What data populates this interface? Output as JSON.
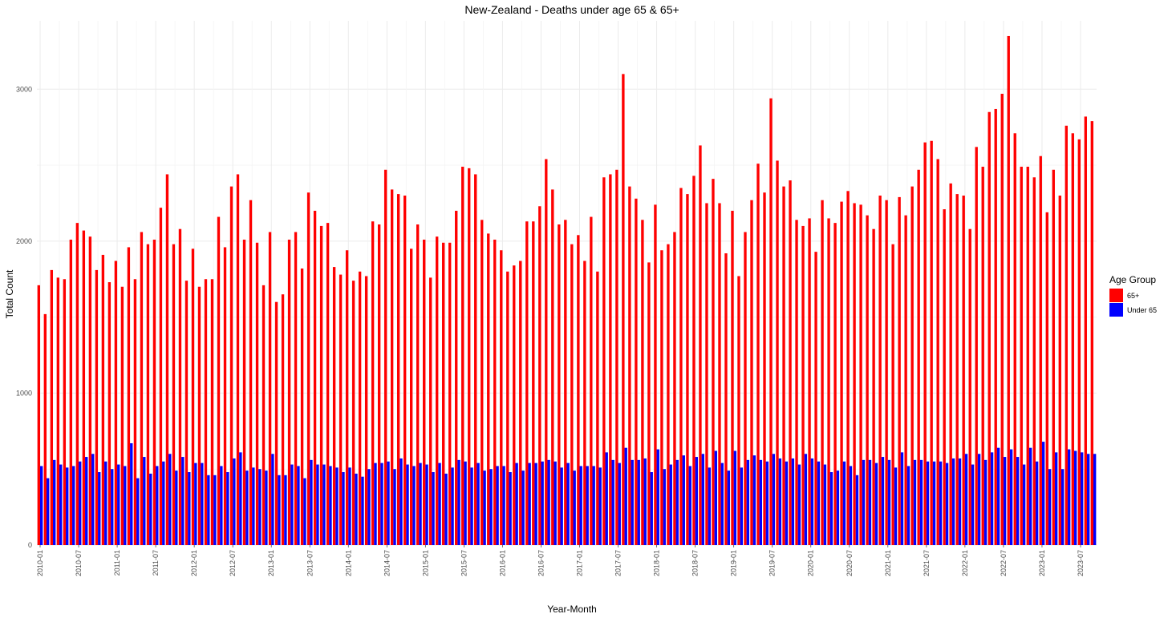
{
  "chart_data": {
    "type": "bar",
    "title": "New-Zealand - Deaths under age 65 & 65+",
    "xlabel": "Year-Month",
    "ylabel": "Total Count",
    "ylim": [
      0,
      3450
    ],
    "y_ticks": [
      0,
      1000,
      2000,
      3000
    ],
    "x_start": "2010-01",
    "x_tick_labels": [
      "2010-01",
      "2010-07",
      "2011-01",
      "2011-07",
      "2012-01",
      "2012-07",
      "2013-01",
      "2013-07",
      "2014-01",
      "2014-07",
      "2015-01",
      "2015-07",
      "2016-01",
      "2016-07",
      "2017-01",
      "2017-07",
      "2018-01",
      "2018-07",
      "2019-01",
      "2019-07",
      "2020-01",
      "2020-07",
      "2021-01",
      "2021-07",
      "2022-01",
      "2022-07",
      "2023-01",
      "2023-07"
    ],
    "grid": true,
    "legend": {
      "title": "Age Group",
      "position": "right",
      "entries": [
        {
          "label": "65+",
          "color": "#ff0000"
        },
        {
          "label": "Under 65",
          "color": "#0000ff"
        }
      ]
    },
    "series": [
      {
        "name": "65+",
        "color": "#ff0000",
        "values": [
          1710,
          1520,
          1810,
          1760,
          1750,
          2010,
          2120,
          2070,
          2030,
          1810,
          1910,
          1730,
          1870,
          1700,
          1960,
          1750,
          2060,
          1980,
          2010,
          2220,
          2440,
          1980,
          2080,
          1740,
          1950,
          1700,
          1750,
          1750,
          2160,
          1960,
          2360,
          2440,
          2010,
          2270,
          1990,
          1710,
          2060,
          1600,
          1650,
          2010,
          2060,
          1820,
          2320,
          2200,
          2100,
          2120,
          1830,
          1780,
          1940,
          1740,
          1800,
          1770,
          2130,
          2110,
          2470,
          2340,
          2310,
          2300,
          1950,
          2110,
          2010,
          1760,
          2030,
          1990,
          1990,
          2200,
          2490,
          2480,
          2440,
          2140,
          2050,
          2010,
          1940,
          1800,
          1840,
          1870,
          2130,
          2130,
          2230,
          2540,
          2340,
          2110,
          2140,
          1980,
          2040,
          1870,
          2160,
          1800,
          2420,
          2440,
          2470,
          3100,
          2360,
          2280,
          2140,
          1860,
          2240,
          1940,
          1980,
          2060,
          2350,
          2310,
          2430,
          2630,
          2250,
          2410,
          2250,
          1920,
          2200,
          1770,
          2060,
          2270,
          2510,
          2320,
          2940,
          2530,
          2360,
          2400,
          2140,
          2100,
          2150,
          1930,
          2270,
          2150,
          2120,
          2260,
          2330,
          2250,
          2240,
          2170,
          2080,
          2300,
          2270,
          1980,
          2290,
          2170,
          2360,
          2470,
          2650,
          2660,
          2540,
          2210,
          2380,
          2310,
          2300,
          2080,
          2620,
          2490,
          2850,
          2870,
          2970,
          3350,
          2710,
          2490,
          2490,
          2420,
          2560,
          2190,
          2470,
          2300,
          2760,
          2710,
          2670,
          2820,
          2790
        ]
      },
      {
        "name": "Under 65",
        "color": "#0000ff",
        "values": [
          520,
          440,
          560,
          530,
          510,
          520,
          550,
          580,
          600,
          480,
          550,
          500,
          530,
          520,
          670,
          440,
          580,
          470,
          520,
          550,
          600,
          490,
          580,
          480,
          540,
          540,
          460,
          460,
          520,
          480,
          570,
          610,
          490,
          510,
          500,
          490,
          600,
          460,
          460,
          530,
          520,
          440,
          560,
          530,
          530,
          520,
          510,
          480,
          510,
          470,
          450,
          500,
          540,
          540,
          550,
          500,
          570,
          530,
          520,
          540,
          530,
          480,
          540,
          470,
          510,
          560,
          550,
          510,
          540,
          490,
          500,
          520,
          520,
          480,
          540,
          490,
          540,
          540,
          550,
          560,
          550,
          510,
          540,
          490,
          520,
          520,
          520,
          510,
          610,
          560,
          540,
          640,
          560,
          560,
          570,
          480,
          630,
          500,
          530,
          560,
          590,
          520,
          580,
          600,
          510,
          620,
          540,
          490,
          620,
          510,
          560,
          590,
          560,
          550,
          600,
          570,
          550,
          570,
          530,
          600,
          570,
          550,
          530,
          480,
          490,
          550,
          520,
          460,
          560,
          560,
          540,
          580,
          560,
          510,
          610,
          520,
          560,
          560,
          550,
          550,
          550,
          540,
          570,
          570,
          600,
          530,
          600,
          560,
          610,
          640,
          580,
          630,
          580,
          530,
          640,
          550,
          680,
          500,
          610,
          500,
          630,
          620,
          610,
          600,
          600
        ]
      }
    ]
  }
}
